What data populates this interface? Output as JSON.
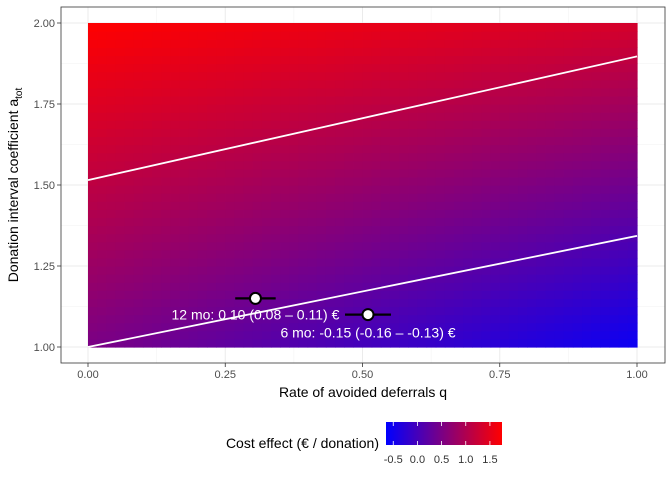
{
  "chart_data": {
    "type": "heatmap",
    "xlabel": "Rate of avoided deferrals q",
    "ylabel_main": "Donation interval coefficient a",
    "ylabel_sub": "tot",
    "xlim": [
      0,
      1
    ],
    "ylim": [
      1,
      2
    ],
    "x_ticks": [
      "0.00",
      "0.25",
      "0.50",
      "0.75",
      "1.00"
    ],
    "y_ticks": [
      "1.00",
      "1.25",
      "1.50",
      "1.75",
      "2.00"
    ],
    "grid": true,
    "fill": {
      "corners": {
        "q0_a2": 1.75,
        "q1_a2": 1.35,
        "q0_a1": 0.5,
        "q1_a1": -0.55
      },
      "low_color": "#0000ff",
      "high_color": "#ff0000",
      "range": [
        -0.65,
        1.75
      ]
    },
    "contours": [
      {
        "x": [
          0,
          1
        ],
        "y": [
          1.515,
          1.897
        ],
        "color": "#ffffff"
      },
      {
        "x": [
          0,
          1
        ],
        "y": [
          1.0,
          1.343
        ],
        "color": "#ffffff"
      }
    ],
    "points": [
      {
        "x": 0.305,
        "y": 1.15,
        "x_lo": 0.29,
        "x_hi": 0.32
      },
      {
        "x": 0.51,
        "y": 1.1,
        "x_lo": 0.49,
        "x_hi": 0.53
      }
    ],
    "annotations": [
      {
        "text": "12 mo: 0.10 (0.08 – 0.11) €",
        "x": 0.305,
        "y": 1.1
      },
      {
        "text": "6 mo: -0.15 (-0.16 – -0.13) €",
        "x": 0.51,
        "y": 1.045
      }
    ],
    "legend": {
      "title": "Cost effect (€ / donation)",
      "ticks": [
        "-0.5",
        "0.0",
        "0.5",
        "1.0",
        "1.5"
      ],
      "tick_values": [
        -0.5,
        0.0,
        0.5,
        1.0,
        1.5
      ],
      "position": "bottom"
    }
  }
}
